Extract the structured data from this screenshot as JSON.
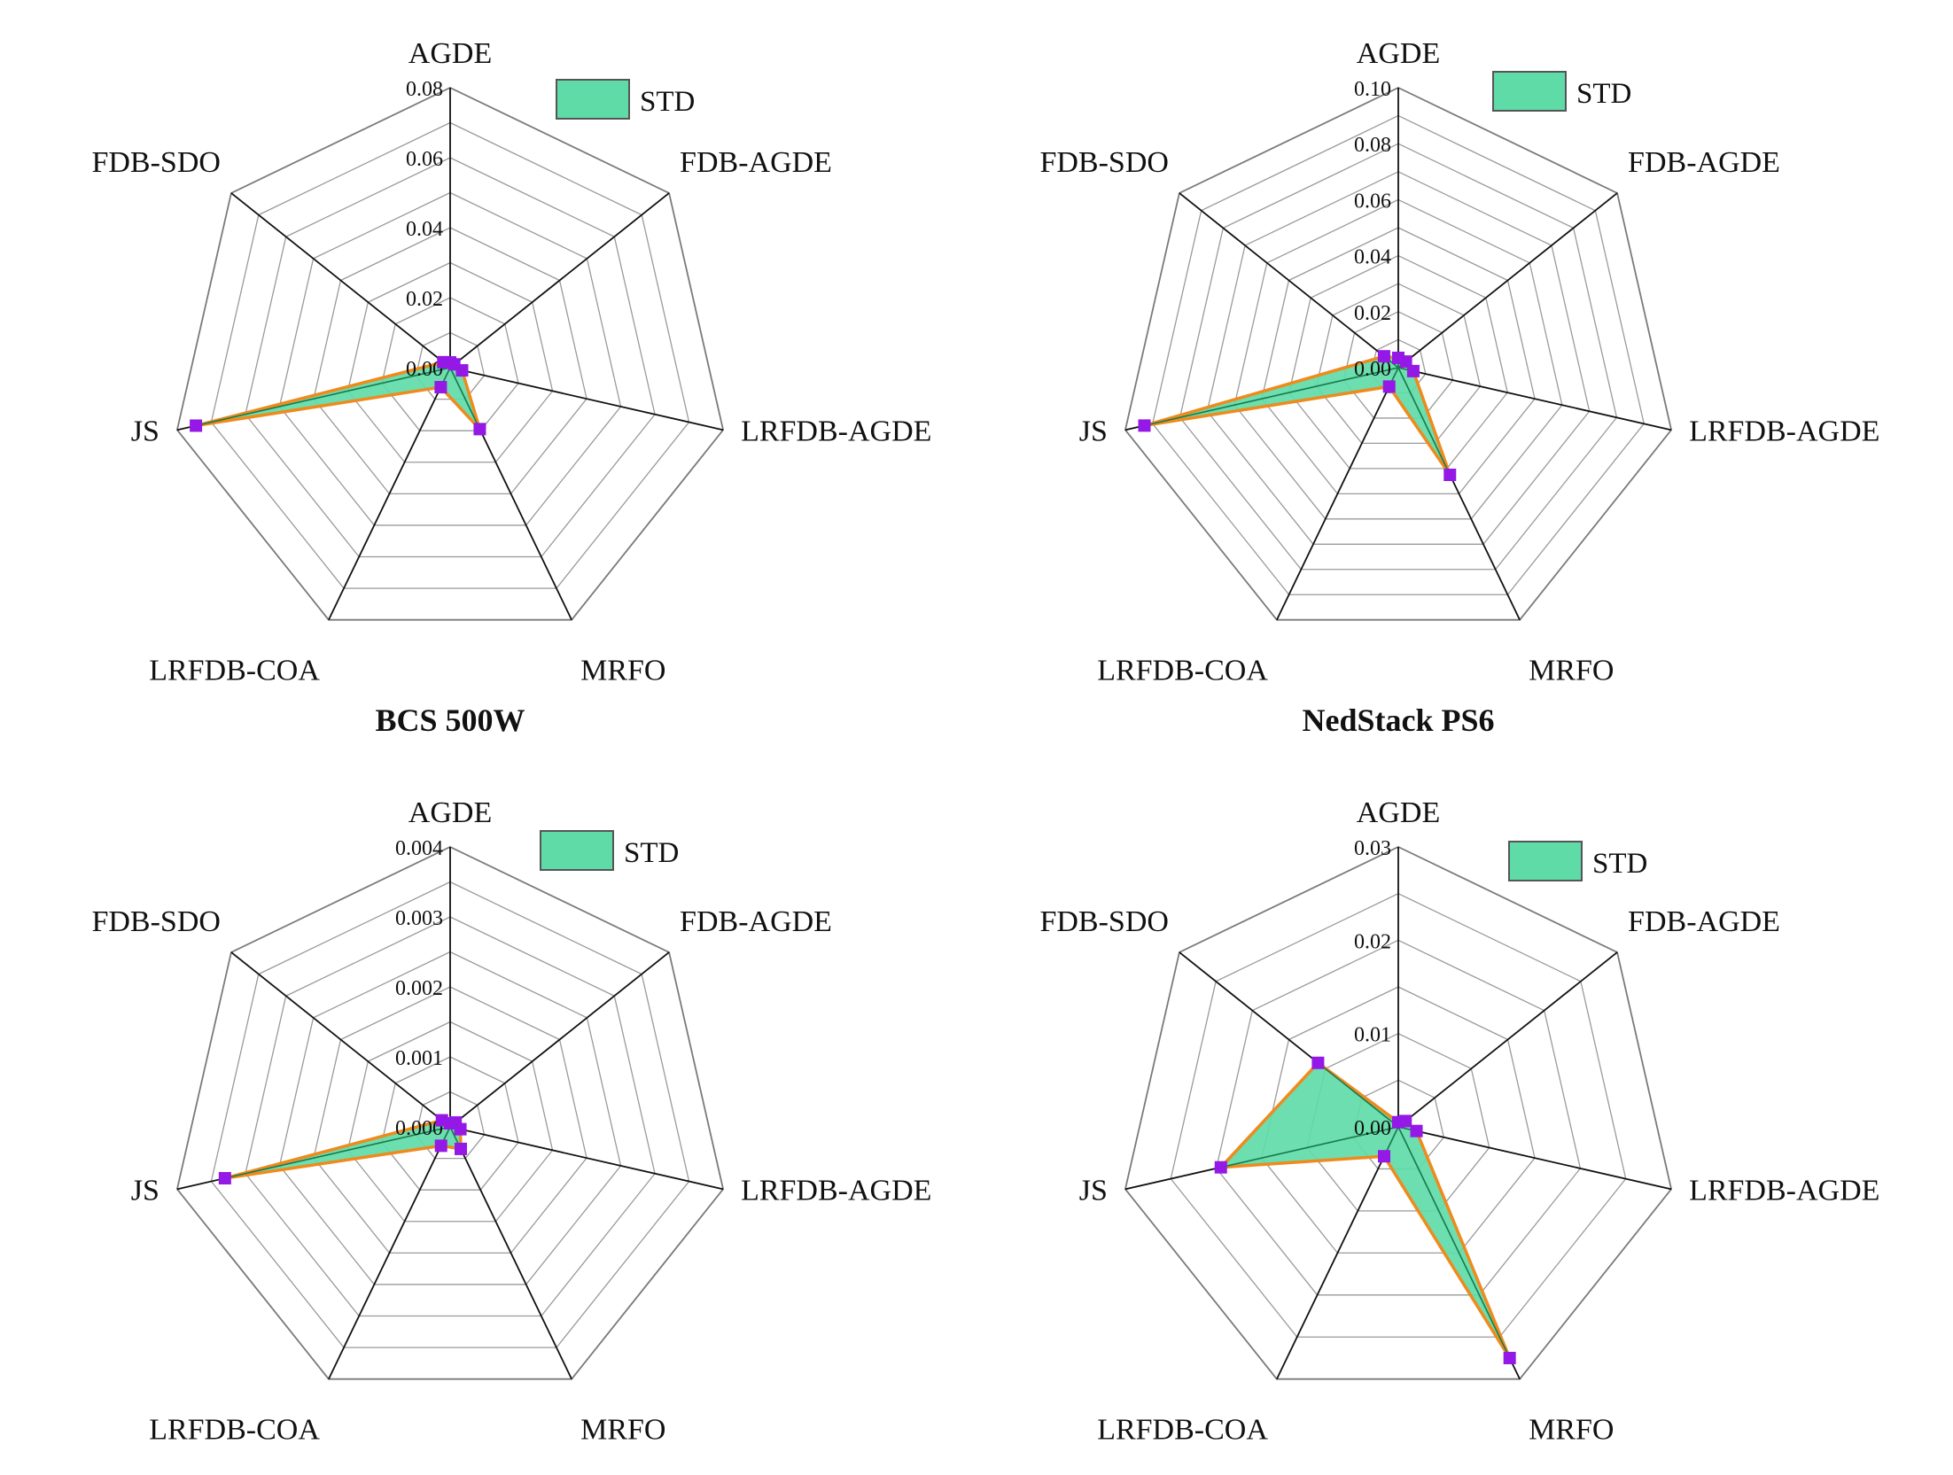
{
  "chart_data": [
    {
      "type": "radar",
      "title": "BCS 500W",
      "axes": [
        "AGDE",
        "FDB-AGDE",
        "LRFDB-AGDE",
        "MRFO",
        "LRFDB-COA",
        "JS",
        "FDB-SDO"
      ],
      "ticks": [
        "0.00",
        "0.02",
        "0.04",
        "0.06",
        "0.08"
      ],
      "range": [
        0,
        0.08
      ],
      "grid_levels": 8,
      "series": [
        {
          "name": "STD",
          "values": [
            0.0015,
            0.0015,
            0.0035,
            0.0195,
            0.0062,
            0.0745,
            0.0025
          ]
        }
      ]
    },
    {
      "type": "radar",
      "title": "NedStack PS6",
      "axes": [
        "AGDE",
        "FDB-AGDE",
        "LRFDB-AGDE",
        "MRFO",
        "LRFDB-COA",
        "JS",
        "FDB-SDO"
      ],
      "ticks": [
        "0.00",
        "0.02",
        "0.04",
        "0.06",
        "0.08",
        "0.10"
      ],
      "range": [
        0,
        0.1
      ],
      "grid_levels": 10,
      "series": [
        {
          "name": "STD",
          "values": [
            0.0035,
            0.0035,
            0.0055,
            0.0425,
            0.0075,
            0.093,
            0.0065
          ]
        }
      ]
    },
    {
      "type": "radar",
      "title": "",
      "axes": [
        "AGDE",
        "FDB-AGDE",
        "LRFDB-AGDE",
        "MRFO",
        "LRFDB-COA",
        "JS",
        "FDB-SDO"
      ],
      "ticks": [
        "0.000",
        "0.001",
        "0.002",
        "0.003",
        "0.004"
      ],
      "range": [
        0,
        0.004
      ],
      "grid_levels": 8,
      "series": [
        {
          "name": "STD",
          "values": [
            5e-05,
            0.0001,
            0.00015,
            0.00035,
            0.0003,
            0.0033,
            0.00015
          ]
        }
      ]
    },
    {
      "type": "radar",
      "title": "",
      "axes": [
        "AGDE",
        "FDB-AGDE",
        "LRFDB-AGDE",
        "MRFO",
        "LRFDB-COA",
        "JS",
        "FDB-SDO"
      ],
      "ticks": [
        "0.00",
        "0.01",
        "0.02",
        "0.03"
      ],
      "range": [
        0,
        0.03
      ],
      "grid_levels": 6,
      "series": [
        {
          "name": "STD",
          "values": [
            0.0005,
            0.001,
            0.002,
            0.0275,
            0.0035,
            0.0195,
            0.011
          ]
        }
      ]
    }
  ],
  "colors": {
    "fill": "#5fdba8",
    "outline": "#ef8a1c",
    "marker": "#9418e6",
    "spoke_inner": "#1a7a4a",
    "grid": "#9a9a9a",
    "axis": "#111111"
  }
}
